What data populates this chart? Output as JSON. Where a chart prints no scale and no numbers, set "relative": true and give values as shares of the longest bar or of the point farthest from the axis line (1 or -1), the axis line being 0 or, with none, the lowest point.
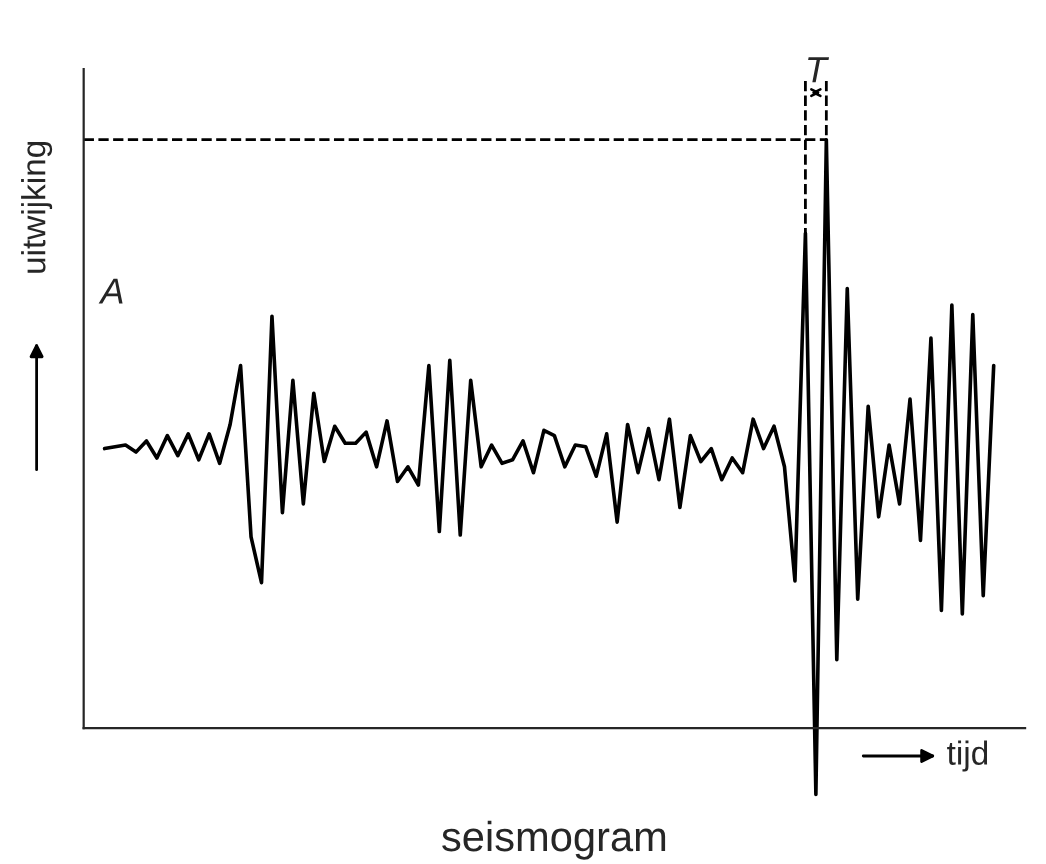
{
  "chart_data": {
    "type": "line",
    "title": "seismogram",
    "xlabel": "tijd",
    "ylabel": "uitwijking",
    "relative": true,
    "categories": [
      null,
      null,
      null,
      null,
      null,
      null,
      null,
      null,
      null,
      null,
      null,
      null,
      null,
      null,
      null,
      null,
      null,
      null,
      null,
      null,
      null,
      null,
      null,
      null,
      null,
      null,
      null,
      null,
      null,
      null,
      null,
      null,
      null,
      null,
      null,
      null,
      null,
      null,
      null,
      null,
      null,
      null,
      null,
      null,
      null,
      null,
      null,
      null,
      null,
      null,
      null,
      null,
      null,
      null,
      null,
      null,
      null,
      null,
      null,
      null,
      null,
      null,
      null,
      null,
      null,
      null,
      null,
      null,
      null,
      null,
      null,
      null,
      null,
      null,
      null,
      null,
      null,
      null,
      null,
      null,
      null,
      null,
      null,
      null,
      null,
      null
    ],
    "series": [
      {
        "color": "#000000",
        "values": [
          0.475,
          0.478,
          0.481,
          0.469,
          0.488,
          0.459,
          0.497,
          0.463,
          0.5,
          0.456,
          0.5,
          0.45,
          0.516,
          0.616,
          0.325,
          0.247,
          0.7,
          0.366,
          0.591,
          0.381,
          0.569,
          0.453,
          0.513,
          0.484,
          0.484,
          0.503,
          0.444,
          0.522,
          0.419,
          0.444,
          0.413,
          0.616,
          0.334,
          0.625,
          0.328,
          0.591,
          0.444,
          0.481,
          0.45,
          0.456,
          0.488,
          0.434,
          0.506,
          0.497,
          0.444,
          0.481,
          0.478,
          0.428,
          0.5,
          0.35,
          0.516,
          0.434,
          0.509,
          0.422,
          0.525,
          0.375,
          0.497,
          0.453,
          0.475,
          0.422,
          0.459,
          0.434,
          0.525,
          0.475,
          0.513,
          0.444,
          0.25,
          0.841,
          -0.113,
          1,
          0.116,
          0.747,
          0.219,
          0.547,
          0.359,
          0.481,
          0.381,
          0.559,
          0.319,
          0.663,
          0.2,
          0.719,
          0.194,
          0.703,
          0.225,
          0.616
        ]
      }
    ],
    "ref_lines": [
      {
        "axis": "y",
        "value": 1,
        "line_style": "dashed",
        "color": "#000000"
      }
    ],
    "annotations": [
      "A",
      "T"
    ],
    "legend": false,
    "marker": "none",
    "line_style": "solid"
  }
}
